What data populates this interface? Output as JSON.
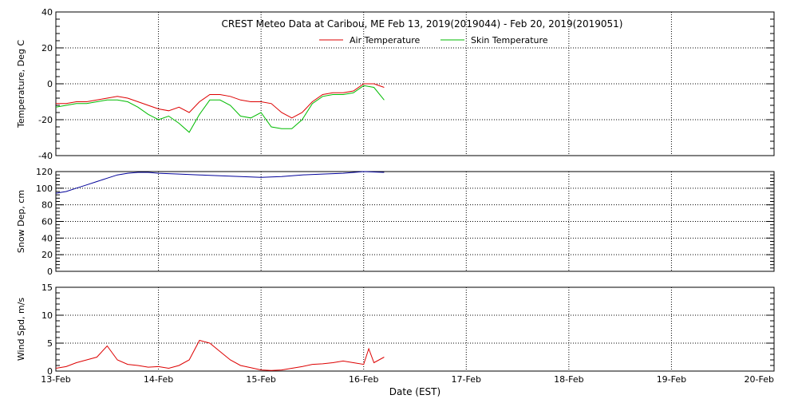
{
  "title": "CREST Meteo Data at Caribou, ME   Feb 13, 2019(2019044) - Feb 20, 2019(2019051)",
  "xlabel": "Date (EST)",
  "x_ticks": [
    "13-Feb",
    "14-Feb",
    "15-Feb",
    "16-Feb",
    "17-Feb",
    "18-Feb",
    "19-Feb",
    "20-Feb"
  ],
  "colors": {
    "air": "#dd0000",
    "skin": "#00bb00",
    "snow": "#000099",
    "wind": "#dd0000",
    "grid": "#000000"
  },
  "chart_data": [
    {
      "type": "line",
      "ylabel": "Temperature, Deg C",
      "ylim": [
        -40,
        40
      ],
      "y_ticks": [
        -40,
        -20,
        0,
        20,
        40
      ],
      "x_unit": "days since 13-Feb",
      "xlim": [
        0,
        7
      ],
      "legend": "top-center",
      "series": [
        {
          "name": "Air Temperature",
          "x": [
            0,
            0.1,
            0.2,
            0.3,
            0.4,
            0.5,
            0.6,
            0.7,
            0.8,
            0.9,
            1.0,
            1.1,
            1.2,
            1.3,
            1.4,
            1.5,
            1.6,
            1.7,
            1.8,
            1.9,
            2.0,
            2.1,
            2.2,
            2.3,
            2.4,
            2.5,
            2.6,
            2.7,
            2.8,
            2.9,
            3.0,
            3.1,
            3.2
          ],
          "y": [
            -11,
            -11,
            -10,
            -10,
            -9,
            -8,
            -7,
            -8,
            -10,
            -12,
            -14,
            -15,
            -13,
            -16,
            -10,
            -6,
            -6,
            -7,
            -9,
            -10,
            -10,
            -11,
            -16,
            -19,
            -16,
            -10,
            -6,
            -5,
            -5,
            -4,
            0,
            0,
            -2
          ]
        },
        {
          "name": "Skin Temperature",
          "x": [
            0,
            0.1,
            0.2,
            0.3,
            0.4,
            0.5,
            0.6,
            0.7,
            0.8,
            0.9,
            1.0,
            1.1,
            1.2,
            1.3,
            1.4,
            1.5,
            1.6,
            1.7,
            1.8,
            1.9,
            2.0,
            2.1,
            2.2,
            2.3,
            2.4,
            2.5,
            2.6,
            2.7,
            2.8,
            2.9,
            3.0,
            3.1,
            3.2
          ],
          "y": [
            -13,
            -12,
            -11,
            -11,
            -10,
            -9,
            -9,
            -10,
            -13,
            -17,
            -20,
            -18,
            -22,
            -27,
            -17,
            -9,
            -9,
            -12,
            -18,
            -19,
            -16,
            -24,
            -25,
            -25,
            -20,
            -11,
            -7,
            -6,
            -6,
            -5,
            -1,
            -2,
            -9
          ]
        }
      ]
    },
    {
      "type": "line",
      "ylabel": "Snow Dep, cm",
      "ylim": [
        0,
        120
      ],
      "y_ticks": [
        0,
        20,
        40,
        60,
        80,
        100,
        120
      ],
      "series": [
        {
          "name": "",
          "x": [
            0,
            0.1,
            0.2,
            0.3,
            0.4,
            0.5,
            0.6,
            0.7,
            0.8,
            0.9,
            1.0,
            1.2,
            1.4,
            1.6,
            1.8,
            2.0,
            2.2,
            2.4,
            2.6,
            2.8,
            3.0,
            3.2
          ],
          "y": [
            94,
            96,
            100,
            104,
            108,
            112,
            116,
            118,
            119,
            119,
            118,
            117,
            116,
            115,
            114,
            113,
            114,
            116,
            117,
            118,
            120,
            119
          ]
        }
      ]
    },
    {
      "type": "line",
      "ylabel": "Wind Spd, m/s",
      "ylim": [
        0,
        15
      ],
      "y_ticks": [
        0,
        5,
        10,
        15
      ],
      "series": [
        {
          "name": "",
          "x": [
            0,
            0.1,
            0.2,
            0.3,
            0.4,
            0.5,
            0.6,
            0.7,
            0.8,
            0.9,
            1.0,
            1.1,
            1.2,
            1.3,
            1.4,
            1.5,
            1.6,
            1.7,
            1.8,
            1.9,
            2.0,
            2.1,
            2.2,
            2.3,
            2.4,
            2.5,
            2.6,
            2.7,
            2.8,
            2.9,
            3.0,
            3.05,
            3.1,
            3.2
          ],
          "y": [
            0.5,
            0.8,
            1.5,
            2,
            2.5,
            4.5,
            2,
            1.2,
            1,
            0.7,
            0.8,
            0.5,
            1,
            2,
            5.5,
            5,
            3.5,
            2,
            1,
            0.6,
            0.2,
            0.1,
            0.2,
            0.5,
            0.8,
            1.2,
            1.3,
            1.5,
            1.8,
            1.5,
            1.2,
            4,
            1.5,
            2.5
          ]
        }
      ]
    }
  ]
}
